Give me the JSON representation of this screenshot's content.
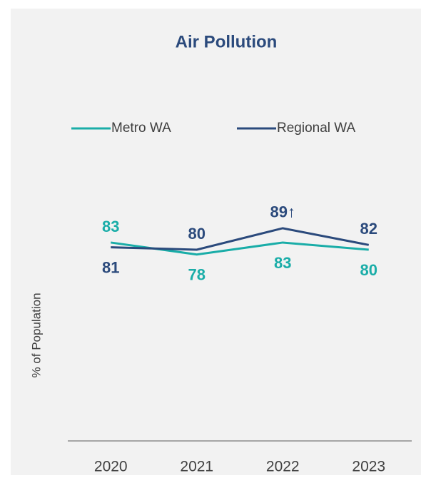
{
  "chart_data": {
    "type": "line",
    "title": "Air Pollution",
    "y_label": "% of Population",
    "categories": [
      "2020",
      "2021",
      "2022",
      "2023"
    ],
    "series": [
      {
        "name": "Metro WA",
        "color": "#1aada8",
        "values": [
          83,
          78,
          83,
          80
        ]
      },
      {
        "name": "Regional WA",
        "color": "#2b4a7c",
        "values": [
          81,
          80,
          89,
          82
        ],
        "value_labels": [
          "81",
          "80",
          "89↑",
          "82"
        ]
      }
    ],
    "ylim": [
      0,
      100
    ],
    "legend": "top"
  }
}
